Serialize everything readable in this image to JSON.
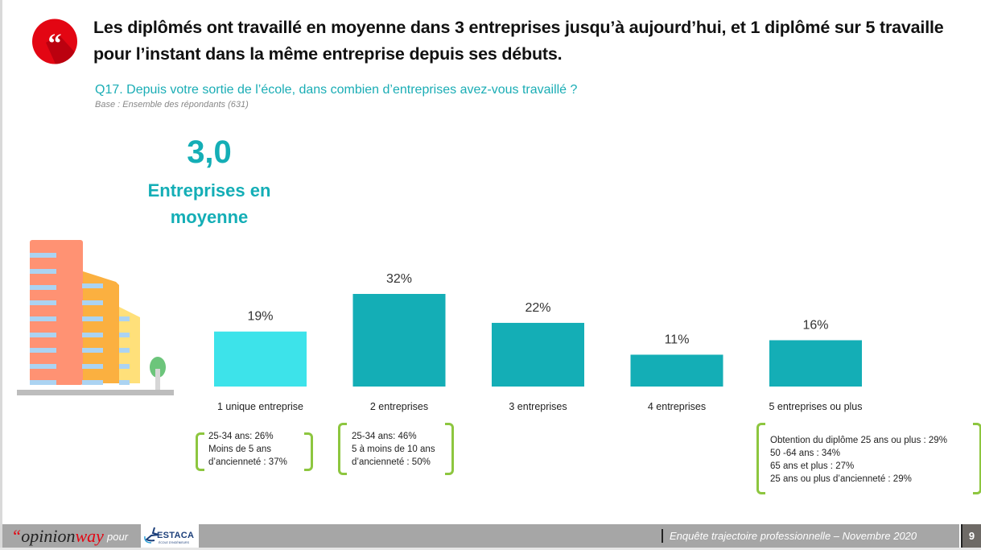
{
  "header": {
    "headline": "Les diplômés ont travaillé en moyenne dans 3 entreprises jusqu’à aujourd’hui, et 1 diplômé sur 5 travaille pour l’instant dans la même entreprise depuis ses débuts.",
    "question": "Q17. Depuis votre sortie de l’école, dans combien d’entreprises avez-vous travaillé ?",
    "base": "Base : Ensemble des répondants (631)",
    "quote_icon": "quote-icon"
  },
  "kpi": {
    "value": "3,0",
    "label_line1": "Entreprises en",
    "label_line2": "moyenne"
  },
  "colors": {
    "accent": "#14aeb6",
    "highlight_bar": "#3de3ea",
    "bracket": "#8dc63f",
    "quote_red": "#e30613"
  },
  "chart_data": {
    "type": "bar",
    "title": "",
    "xlabel": "",
    "ylabel": "",
    "ylim": [
      0,
      35
    ],
    "grid": false,
    "categories": [
      "1 unique entreprise",
      "2 entreprises",
      "3 entreprises",
      "4 entreprises",
      "5 entreprises ou plus"
    ],
    "values": [
      19,
      32,
      22,
      11,
      16
    ],
    "value_labels": [
      "19%",
      "32%",
      "22%",
      "11%",
      "16%"
    ],
    "highlight_index": 0
  },
  "notes": [
    {
      "lines": [
        "25-34 ans: 26%",
        "Moins de 5 ans",
        "d’ancienneté : 37%"
      ]
    },
    {
      "lines": [
        "25-34 ans: 46%",
        "5 à moins de 10 ans",
        "d’ancienneté : 50%"
      ]
    },
    {
      "lines": [
        "Obtention du diplôme 25 ans ou plus : 29%",
        "50 -64 ans : 34%",
        "65 ans et plus : 27%",
        "25 ans ou plus d’ancienneté : 29%"
      ]
    }
  ],
  "footer": {
    "brand_quote": "“",
    "brand_opinion": "opinion",
    "brand_way": "way",
    "pour": "pour",
    "partner": "ESTACA",
    "partner_sub": "ÉCOLE D’INGÉNIEURS",
    "title": "Enquête trajectoire professionnelle – Novembre 2020",
    "page": "9"
  }
}
